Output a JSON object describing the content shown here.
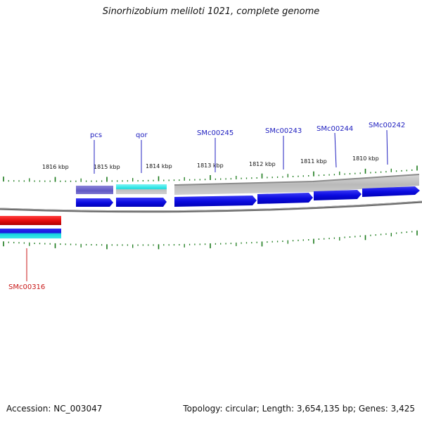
{
  "title": "Sinorhizobium meliloti 1021, complete genome",
  "footer": {
    "accession": "Accession: NC_003047",
    "stats": "Topology: circular; Length: 3,654,135 bp; Genes: 3,425"
  },
  "kbp_labels": [
    "1816 kbp",
    "1815 kbp",
    "1814 kbp",
    "1813 kbp",
    "1812 kbp",
    "1811 kbp",
    "1810 kbp"
  ],
  "gene_labels": {
    "pcs": "pcs",
    "qor": "qor",
    "smc00245": "SMc00245",
    "smc00243": "SMc00243",
    "smc00244": "SMc00244",
    "smc00242": "SMc00242",
    "smc00316": "SMc00316"
  },
  "colors": {
    "forward_gene": "#1010e6",
    "reverse_gene": "#e60d0d",
    "tick": "#1a7a1a",
    "backbone": "#6b6b6b",
    "label_forward": "#2020c0",
    "label_reverse": "#c81818"
  }
}
